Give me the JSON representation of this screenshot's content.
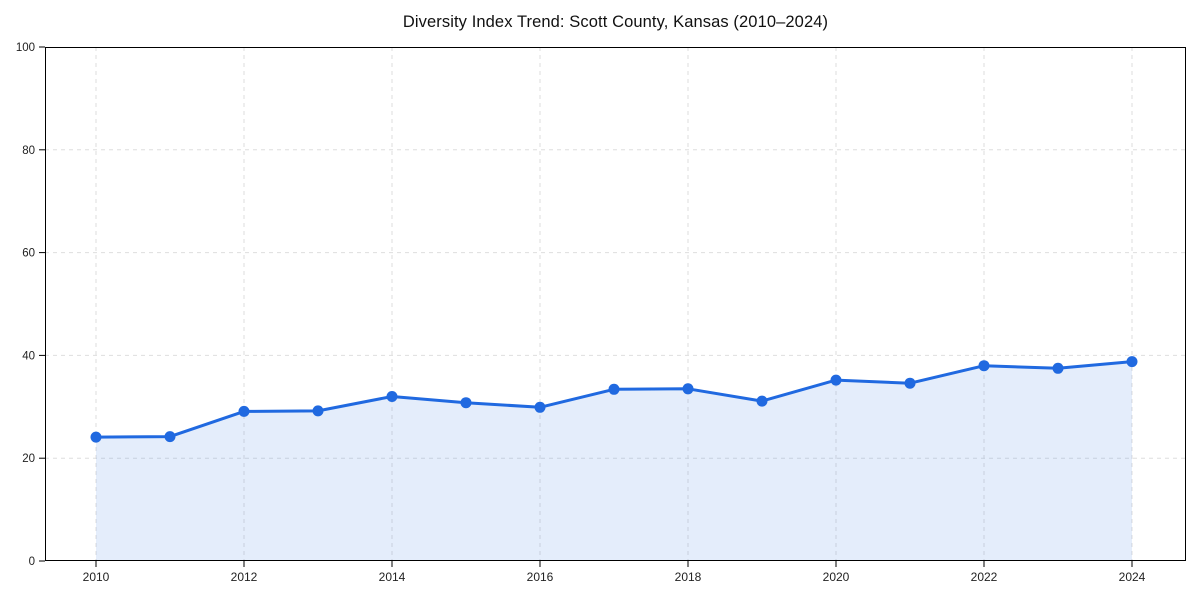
{
  "chart_data": {
    "type": "line",
    "title": "Diversity Index Trend: Scott County, Kansas (2010–2024)",
    "x": [
      2010,
      2011,
      2012,
      2013,
      2014,
      2015,
      2016,
      2017,
      2018,
      2019,
      2020,
      2021,
      2022,
      2023,
      2024
    ],
    "series": [
      {
        "name": "Diversity Index",
        "values": [
          24.1,
          24.2,
          29.1,
          29.2,
          32.0,
          30.8,
          29.9,
          33.4,
          33.5,
          31.1,
          35.2,
          34.6,
          38.0,
          37.5,
          38.8
        ]
      }
    ],
    "xlabel": "",
    "ylabel": "",
    "ylim": [
      0,
      100
    ],
    "xlim_years": [
      2010,
      2024
    ],
    "yticks": [
      0,
      20,
      40,
      60,
      80,
      100
    ],
    "xticks": [
      2010,
      2012,
      2014,
      2016,
      2018,
      2020,
      2022,
      2024
    ],
    "grid": true,
    "grid_style": "dashed",
    "legend": "none",
    "area_fill": true,
    "marker": "circle",
    "colors": {
      "line": "#2069e0",
      "marker": "#2069e0",
      "area": "rgba(32, 105, 224, 0.12)",
      "grid": "#dedede",
      "spine": "#000000",
      "text": "#222222",
      "background": "#ffffff"
    }
  }
}
